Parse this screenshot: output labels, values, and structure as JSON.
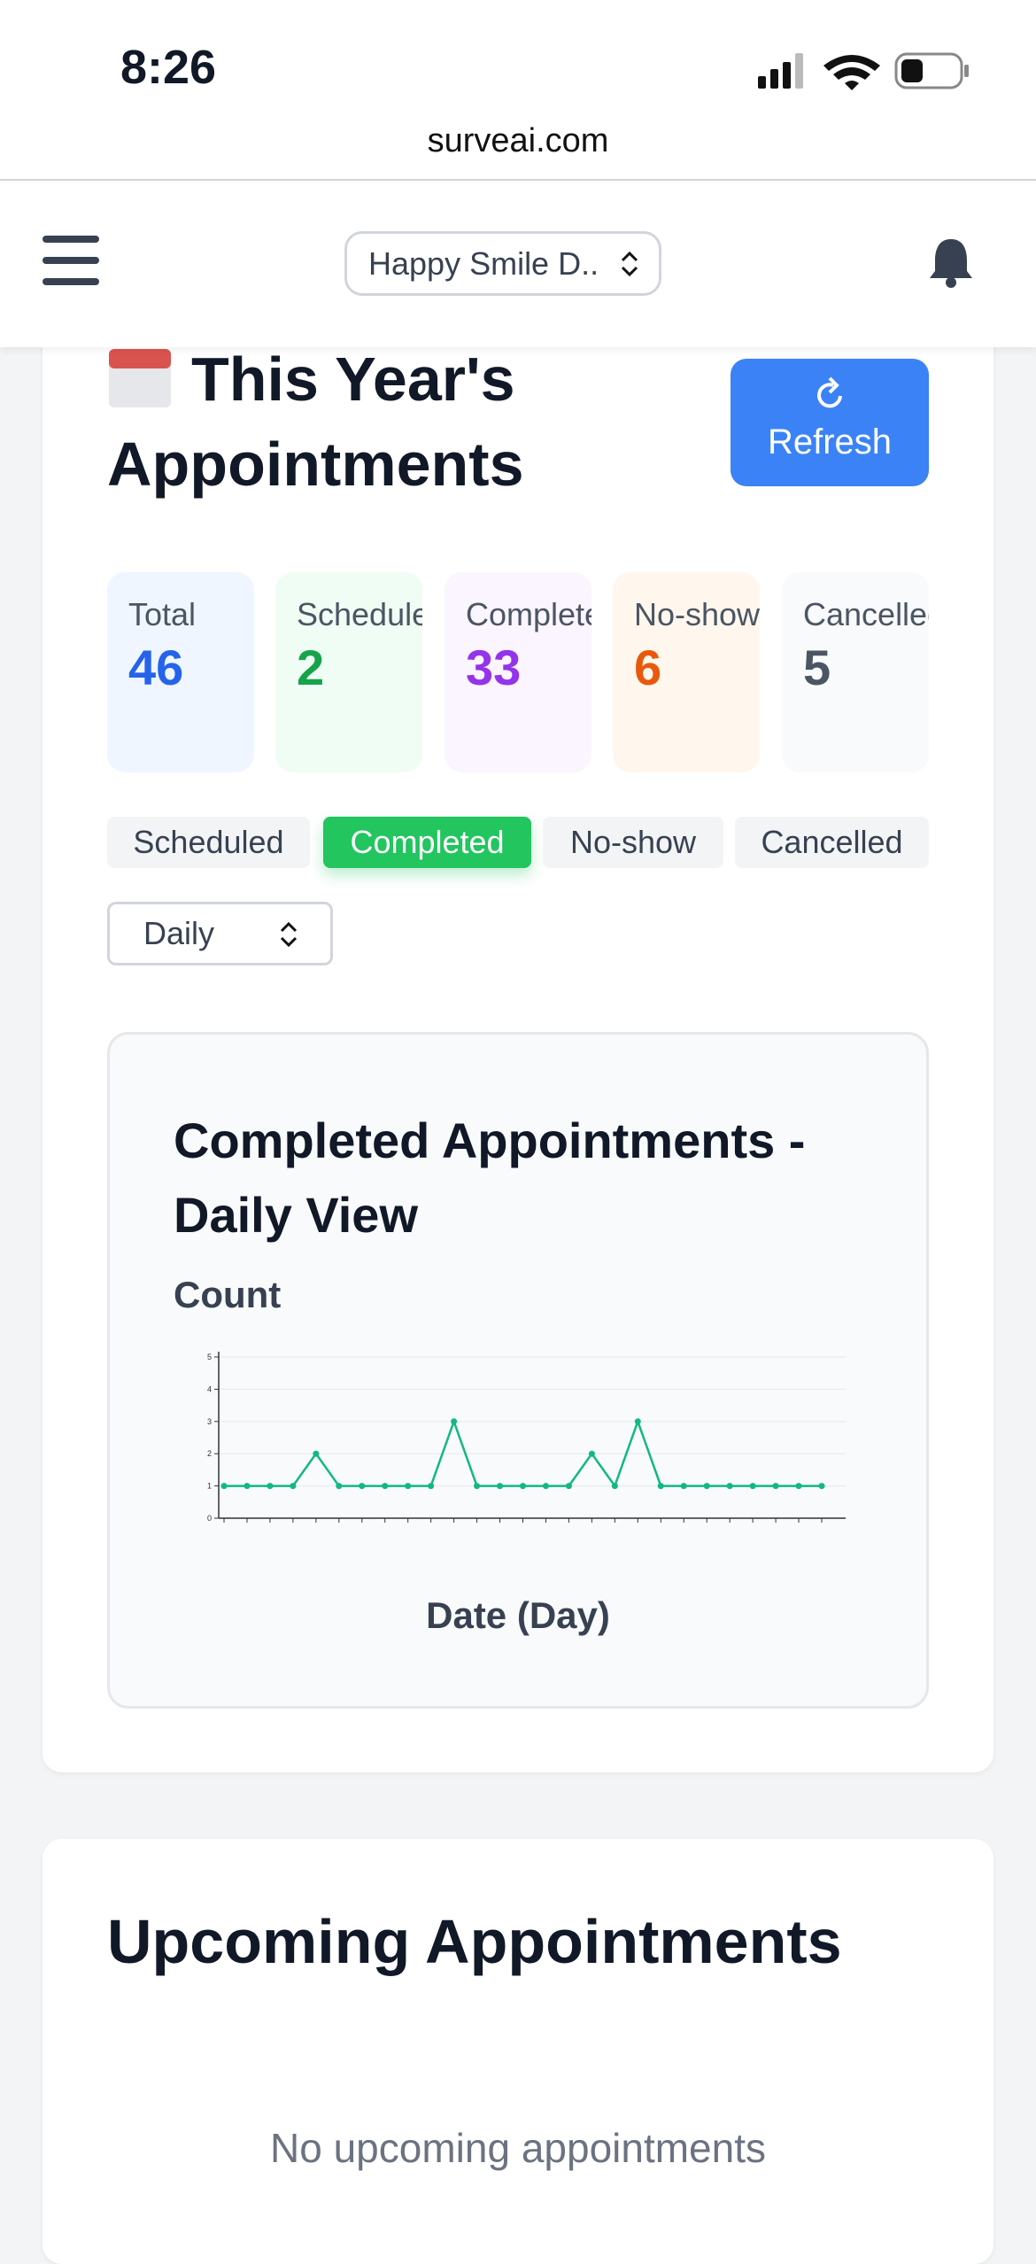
{
  "status_bar": {
    "time": "8:26"
  },
  "browser": {
    "url": "surveai.com"
  },
  "header": {
    "practice_select": "Happy Smile D.."
  },
  "appointments": {
    "title_line1": "This Year's",
    "title_line2": "Appointments",
    "refresh": "Refresh",
    "stats": [
      {
        "label": "Total",
        "value": 46,
        "color": "#2563eb",
        "background": "#eff6ff"
      },
      {
        "label": "Scheduled",
        "value": 2,
        "color": "#16a34a",
        "background": "#f0fdf4"
      },
      {
        "label": "Completed",
        "value": 33,
        "color": "#9333ea",
        "background": "#faf5ff"
      },
      {
        "label": "No-show",
        "value": 6,
        "color": "#ea580c",
        "background": "#fff7ed"
      },
      {
        "label": "Cancelled",
        "value": 5,
        "color": "#4b5563",
        "background": "#f9fafb"
      }
    ],
    "filters": [
      "Scheduled",
      "Completed",
      "No-show",
      "Cancelled"
    ],
    "active_filter": "Completed",
    "period_select": "Daily"
  },
  "chart_data": {
    "type": "line",
    "title": "Completed Appointments - Daily View",
    "y_label": "Count",
    "x_label": "Date (Day)",
    "categories": [
      null,
      null,
      null,
      null,
      null,
      null,
      null,
      null,
      null,
      null,
      null,
      null,
      null,
      null,
      null,
      null,
      null,
      null,
      null,
      null,
      null,
      null,
      null,
      null,
      null,
      null,
      null
    ],
    "series": [
      {
        "name": "Completed",
        "color": "#10b981",
        "values": [
          1,
          1,
          1,
          1,
          2,
          1,
          1,
          1,
          1,
          1,
          3,
          1,
          1,
          1,
          1,
          1,
          2,
          1,
          3,
          1,
          1,
          1,
          1,
          1,
          1,
          1,
          1
        ]
      }
    ],
    "ylim": [
      0,
      5
    ],
    "yticks": [
      0,
      1,
      2,
      3,
      4,
      5
    ],
    "grid": true
  },
  "upcoming": {
    "title": "Upcoming Appointments",
    "empty": "No upcoming appointments"
  }
}
